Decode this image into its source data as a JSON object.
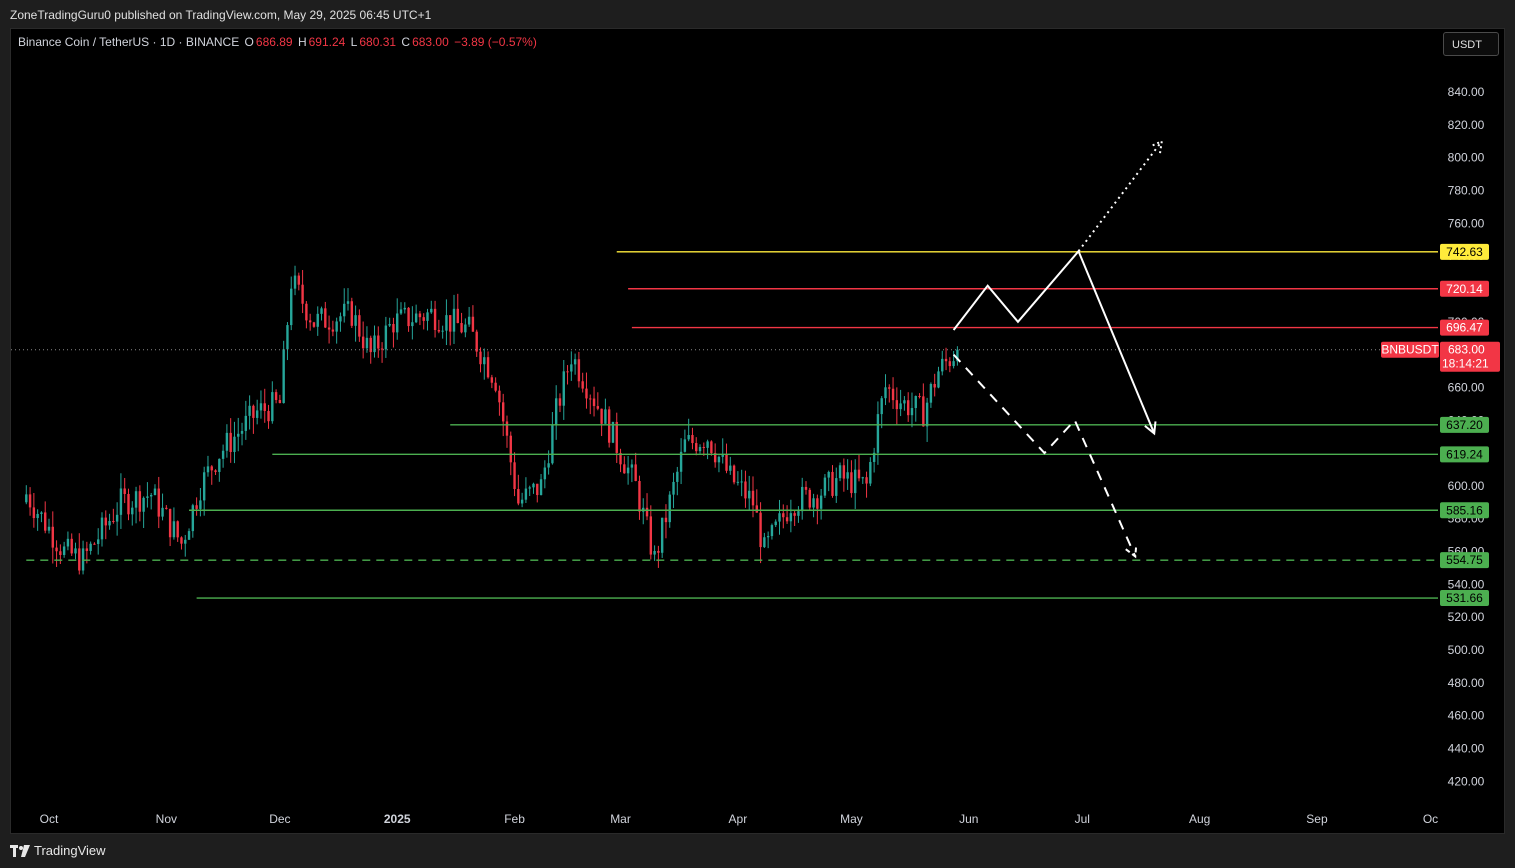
{
  "header": {
    "published_text": "ZoneTradingGuru0 published on TradingView.com, May 29, 2025 06:45 UTC+1"
  },
  "legend": {
    "symbol_text": "Binance Coin / TetherUS · 1D · BINANCE",
    "open_label": "O",
    "open_value": "686.89",
    "high_label": "H",
    "high_value": "691.24",
    "low_label": "L",
    "low_value": "680.31",
    "close_label": "C",
    "close_value": "683.00",
    "change_text": "−3.89 (−0.57%)"
  },
  "toolbar": {
    "currency": "USDT"
  },
  "footer": {
    "brand": "TradingView"
  },
  "colors": {
    "up": "#26a69a",
    "down": "#f23645",
    "support": "#4caf50",
    "resistance": "#f23645",
    "target": "#ffeb3b",
    "projection": "#ffffff"
  },
  "chart_data": {
    "type": "candlestick",
    "symbol": "BNBUSDT",
    "y_axis": {
      "min": 400,
      "max": 860,
      "ticks": [
        "840.00",
        "820.00",
        "800.00",
        "780.00",
        "760.00",
        "740.00",
        "700.00",
        "680.00",
        "660.00",
        "640.00",
        "620.00",
        "600.00",
        "580.00",
        "560.00",
        "540.00",
        "520.00",
        "500.00",
        "480.00",
        "460.00",
        "440.00",
        "420.00"
      ]
    },
    "x_axis": {
      "labels": [
        "Oct",
        "Nov",
        "Dec",
        "2025",
        "Feb",
        "Mar",
        "Apr",
        "May",
        "Jun",
        "Jul",
        "Aug",
        "Sep",
        "Oc"
      ],
      "dates": [
        "2024-10-01",
        "2024-11-01",
        "2024-12-01",
        "2025-01-01",
        "2025-02-01",
        "2025-03-01",
        "2025-04-01",
        "2025-05-01",
        "2025-06-01",
        "2025-07-01",
        "2025-08-01",
        "2025-09-01",
        "2025-10-01"
      ]
    },
    "current_price": {
      "label": "BNBUSDT",
      "value": "683.00",
      "countdown": "18:14:21",
      "price": 683.0
    },
    "levels": [
      {
        "name": "level-742",
        "price": 742.63,
        "label": "742.63",
        "color": "#ffeb3b",
        "from": "2025-02-28",
        "style": "solid"
      },
      {
        "name": "level-720",
        "price": 720.14,
        "label": "720.14",
        "color": "#f23645",
        "from": "2025-03-03",
        "style": "solid"
      },
      {
        "name": "level-696",
        "price": 696.47,
        "label": "696.47",
        "color": "#f23645",
        "from": "2025-03-04",
        "style": "solid"
      },
      {
        "name": "level-637",
        "price": 637.2,
        "label": "637.20",
        "color": "#4caf50",
        "from": "2025-01-15",
        "style": "solid"
      },
      {
        "name": "level-619",
        "price": 619.24,
        "label": "619.24",
        "color": "#4caf50",
        "from": "2024-11-29",
        "style": "solid"
      },
      {
        "name": "level-585",
        "price": 585.16,
        "label": "585.16",
        "color": "#4caf50",
        "from": "2024-11-07",
        "style": "solid"
      },
      {
        "name": "level-554",
        "price": 554.75,
        "label": "554.75",
        "color": "#4caf50",
        "from": "2024-09-25",
        "style": "dashed"
      },
      {
        "name": "level-531",
        "price": 531.66,
        "label": "531.66",
        "color": "#4caf50",
        "from": "2024-11-09",
        "style": "solid"
      }
    ],
    "projections": [
      {
        "name": "bearish-main-path",
        "style": "solid",
        "arrow": true,
        "points": [
          [
            "2025-05-28",
            695
          ],
          [
            "2025-06-06",
            722
          ],
          [
            "2025-06-14",
            700
          ],
          [
            "2025-06-30",
            743
          ],
          [
            "2025-07-20",
            632
          ]
        ]
      },
      {
        "name": "bullish-continuation-path",
        "style": "dotted",
        "arrow": true,
        "points": [
          [
            "2025-06-30",
            743
          ],
          [
            "2025-07-22",
            810
          ]
        ]
      },
      {
        "name": "bearish-alt-path",
        "style": "dashed",
        "arrow": true,
        "points": [
          [
            "2025-05-28",
            680
          ],
          [
            "2025-06-21",
            620
          ],
          [
            "2025-06-29",
            640
          ],
          [
            "2025-07-15",
            557
          ]
        ]
      }
    ]
  }
}
